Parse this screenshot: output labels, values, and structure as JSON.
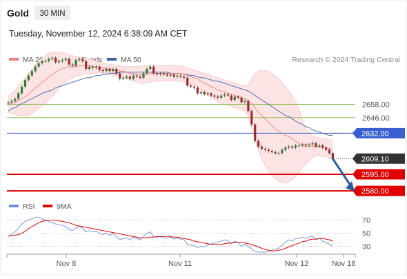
{
  "header": {
    "symbol": "Gold",
    "timeframe": "30 MIN",
    "datetime": "Tuesday, November 12, 2024 6:38:09 AM CET",
    "credit": "Research © 2024 Trading Central"
  },
  "colors": {
    "bollinger": "#f08080",
    "bollinger_fill": "#fde4e4",
    "ma50": "#3a5fb0",
    "support_resistance_green": "#8fbf5a",
    "pivot": "#3a5fd0",
    "support_red": "#e00000",
    "last_price": "#333333",
    "arrow": "#2a5aa0",
    "rsi": "#6a8ee0",
    "rsi_ma": "#e00000",
    "candle_up": "#2f7d32",
    "candle_down": "#a12a2a"
  },
  "chart_data": [
    {
      "type": "candlestick",
      "legend": [
        "MA 20 + Bollinger Bands",
        "MA 50"
      ],
      "legend_position": "top-left",
      "ylim": [
        2572,
        2690
      ],
      "x_ticks": [
        "Nov 8",
        "Nov 11",
        "Nov 12",
        "Nov 18"
      ],
      "grid": false,
      "levels": [
        {
          "label": "2658.00",
          "value": 2658.0,
          "kind": "resistance",
          "color": "#8fbf5a"
        },
        {
          "label": "2646.00",
          "value": 2646.0,
          "kind": "resistance",
          "color": "#8fbf5a"
        },
        {
          "label": "2632.00",
          "value": 2632.0,
          "kind": "pivot",
          "color": "#3a5fd0"
        },
        {
          "label": "2609.10",
          "value": 2609.1,
          "kind": "last",
          "color": "#333333"
        },
        {
          "label": "2595.00",
          "value": 2595.0,
          "kind": "support",
          "color": "#e00000"
        },
        {
          "label": "2580.00",
          "value": 2580.0,
          "kind": "support",
          "color": "#e00000"
        }
      ],
      "close": [
        2660,
        2661,
        2663,
        2668,
        2674,
        2680,
        2684,
        2688,
        2692,
        2695,
        2697,
        2697,
        2699,
        2700,
        2696,
        2697,
        2698,
        2699,
        2694,
        2693,
        2698,
        2699,
        2697,
        2690,
        2692,
        2691,
        2692,
        2689,
        2688,
        2690,
        2688,
        2690,
        2686,
        2681,
        2682,
        2683,
        2681,
        2684,
        2683,
        2682,
        2686,
        2690,
        2692,
        2686,
        2685,
        2686,
        2685,
        2684,
        2685,
        2683,
        2684,
        2683,
        2682,
        2675,
        2674,
        2673,
        2668,
        2669,
        2667,
        2668,
        2666,
        2665,
        2664,
        2666,
        2667,
        2666,
        2662,
        2665,
        2664,
        2660,
        2661,
        2652,
        2640,
        2625,
        2620,
        2618,
        2617,
        2616,
        2615,
        2614,
        2614,
        2617,
        2619,
        2620,
        2619,
        2621,
        2621,
        2622,
        2621,
        2622,
        2623,
        2620,
        2621,
        2619,
        2617,
        2614,
        2609
      ],
      "ma20": [
        2658,
        2659,
        2660,
        2661,
        2663,
        2665,
        2667,
        2670,
        2673,
        2675,
        2678,
        2680,
        2683,
        2685,
        2687,
        2689,
        2690,
        2691,
        2692,
        2692,
        2692,
        2693,
        2693,
        2693,
        2693,
        2692,
        2692,
        2692,
        2691,
        2690,
        2690,
        2689,
        2689,
        2688,
        2688,
        2687,
        2686,
        2686,
        2685,
        2685,
        2685,
        2685,
        2686,
        2686,
        2686,
        2686,
        2686,
        2686,
        2686,
        2686,
        2686,
        2686,
        2685,
        2684,
        2683,
        2682,
        2681,
        2679,
        2677,
        2676,
        2674,
        2673,
        2671,
        2670,
        2669,
        2668,
        2667,
        2666,
        2665,
        2664,
        2663,
        2661,
        2659,
        2655,
        2651,
        2648,
        2645,
        2642,
        2639,
        2636,
        2634,
        2632,
        2630,
        2629,
        2627,
        2625,
        2623,
        2621,
        2620,
        2620,
        2620,
        2620,
        2620,
        2619,
        2619,
        2618,
        2617
      ],
      "bb_upper": [
        2665,
        2668,
        2671,
        2674,
        2678,
        2682,
        2686,
        2690,
        2694,
        2697,
        2700,
        2702,
        2704,
        2705,
        2705,
        2705,
        2705,
        2704,
        2703,
        2702,
        2701,
        2701,
        2700,
        2700,
        2699,
        2698,
        2697,
        2696,
        2695,
        2695,
        2694,
        2694,
        2693,
        2693,
        2692,
        2692,
        2692,
        2692,
        2692,
        2693,
        2693,
        2693,
        2693,
        2693,
        2693,
        2693,
        2693,
        2693,
        2693,
        2693,
        2693,
        2693,
        2692,
        2691,
        2690,
        2689,
        2688,
        2687,
        2686,
        2685,
        2684,
        2683,
        2682,
        2681,
        2680,
        2679,
        2678,
        2677,
        2676,
        2675,
        2675,
        2676,
        2681,
        2686,
        2688,
        2689,
        2689,
        2688,
        2686,
        2684,
        2681,
        2678,
        2674,
        2670,
        2666,
        2660,
        2654,
        2644,
        2636,
        2633,
        2630,
        2628,
        2628,
        2627,
        2627,
        2626,
        2626
      ],
      "bb_lower": [
        2651,
        2650,
        2649,
        2648,
        2648,
        2648,
        2648,
        2650,
        2652,
        2654,
        2657,
        2659,
        2662,
        2665,
        2669,
        2673,
        2675,
        2678,
        2681,
        2682,
        2683,
        2684,
        2685,
        2686,
        2686,
        2686,
        2686,
        2687,
        2686,
        2685,
        2685,
        2684,
        2684,
        2683,
        2683,
        2682,
        2680,
        2680,
        2678,
        2677,
        2677,
        2677,
        2678,
        2679,
        2679,
        2679,
        2679,
        2679,
        2679,
        2679,
        2679,
        2679,
        2678,
        2677,
        2676,
        2675,
        2674,
        2671,
        2668,
        2667,
        2664,
        2663,
        2660,
        2659,
        2658,
        2657,
        2656,
        2655,
        2654,
        2653,
        2652,
        2647,
        2637,
        2626,
        2617,
        2609,
        2603,
        2598,
        2594,
        2591,
        2589,
        2588,
        2587,
        2588,
        2590,
        2593,
        2596,
        2602,
        2604,
        2607,
        2610,
        2612,
        2612,
        2611,
        2611,
        2610,
        2608
      ],
      "ma50": [
        2652,
        2654,
        2655,
        2657,
        2659,
        2660,
        2662,
        2663,
        2665,
        2666,
        2668,
        2669,
        2670,
        2671,
        2673,
        2674,
        2675,
        2676,
        2677,
        2678,
        2679,
        2680,
        2681,
        2682,
        2682,
        2683,
        2684,
        2684,
        2685,
        2685,
        2686,
        2686,
        2686,
        2687,
        2687,
        2687,
        2687,
        2687,
        2687,
        2687,
        2687,
        2687,
        2687,
        2687,
        2687,
        2687,
        2687,
        2687,
        2686,
        2686,
        2686,
        2686,
        2685,
        2685,
        2684,
        2684,
        2683,
        2682,
        2682,
        2681,
        2680,
        2679,
        2679,
        2678,
        2677,
        2676,
        2675,
        2674,
        2673,
        2672,
        2671,
        2670,
        2668,
        2666,
        2664,
        2662,
        2660,
        2658,
        2656,
        2654,
        2652,
        2650,
        2648,
        2647,
        2645,
        2643,
        2641,
        2640,
        2638,
        2637,
        2635,
        2634,
        2633,
        2632,
        2631,
        2630,
        2630
      ]
    },
    {
      "type": "line",
      "legend": [
        "RSI",
        "9MA"
      ],
      "legend_position": "top-left",
      "ylim": [
        18,
        80
      ],
      "y_ticks": [
        70,
        50,
        30
      ],
      "grid": true,
      "series": [
        {
          "name": "RSI",
          "values": [
            45,
            48,
            52,
            58,
            64,
            68,
            70,
            72,
            74,
            74,
            72,
            70,
            68,
            66,
            64,
            63,
            62,
            60,
            56,
            54,
            58,
            60,
            58,
            52,
            54,
            52,
            53,
            50,
            48,
            50,
            47,
            49,
            45,
            40,
            42,
            43,
            40,
            44,
            42,
            40,
            45,
            50,
            52,
            45,
            44,
            45,
            43,
            42,
            44,
            41,
            43,
            41,
            40,
            33,
            32,
            31,
            28,
            30,
            29,
            32,
            34,
            35,
            36,
            38,
            40,
            38,
            34,
            38,
            36,
            30,
            33,
            30,
            26,
            22,
            21,
            21,
            21,
            22,
            24,
            26,
            27,
            32,
            36,
            40,
            38,
            42,
            42,
            44,
            42,
            44,
            46,
            40,
            42,
            38,
            36,
            33,
            30
          ]
        },
        {
          "name": "9MA",
          "values": [
            46,
            46,
            47,
            48,
            50,
            53,
            57,
            60,
            63,
            66,
            68,
            69,
            70,
            70,
            70,
            69,
            68,
            67,
            66,
            64,
            62,
            61,
            60,
            59,
            58,
            57,
            56,
            55,
            54,
            53,
            52,
            51,
            50,
            49,
            48,
            47,
            46,
            45,
            44,
            43,
            43,
            43,
            44,
            44,
            45,
            45,
            45,
            45,
            45,
            44,
            44,
            43,
            42,
            41,
            40,
            38,
            37,
            36,
            35,
            34,
            33,
            33,
            33,
            33,
            34,
            35,
            35,
            36,
            36,
            36,
            35,
            34,
            33,
            31,
            29,
            27,
            25,
            24,
            23,
            23,
            24,
            25,
            27,
            29,
            31,
            33,
            35,
            37,
            38,
            40,
            41,
            41,
            42,
            42,
            41,
            40,
            38
          ]
        }
      ]
    }
  ]
}
